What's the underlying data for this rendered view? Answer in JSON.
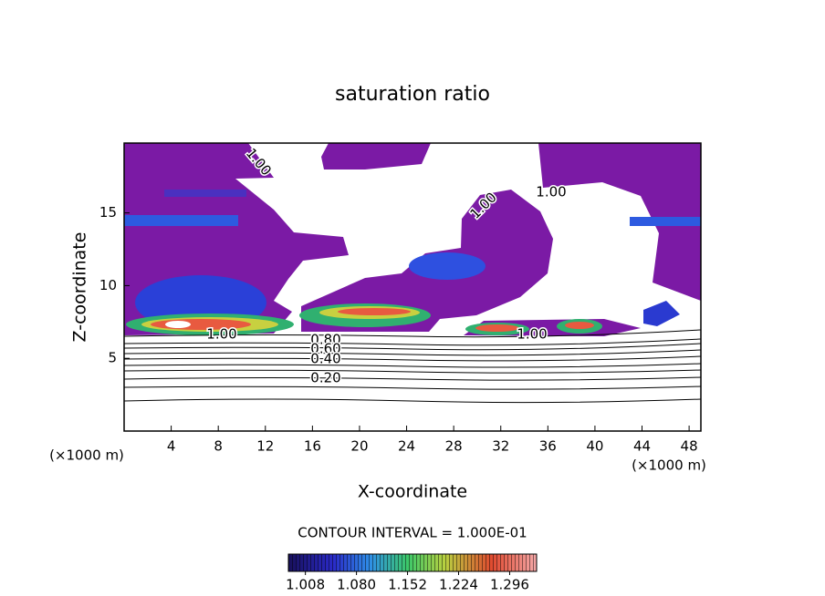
{
  "chart_data": {
    "type": "contour",
    "title": "saturation ratio",
    "x_label": "X-coordinate",
    "y_label": "Z-coordinate",
    "x_unit": "(×1000 m)",
    "y_unit": "(×1000 m)",
    "xlim": [
      0,
      49
    ],
    "ylim": [
      0,
      19.8
    ],
    "xticks": [
      4,
      8,
      12,
      16,
      20,
      24,
      28,
      32,
      36,
      40,
      44,
      48
    ],
    "yticks": [
      5,
      10,
      15
    ],
    "contour_labels": [
      {
        "value": 1,
        "label": "1.00"
      },
      {
        "value": 1,
        "label": "1.00"
      },
      {
        "value": 1,
        "label": "1.00"
      },
      {
        "value": 1,
        "label": "1.00"
      },
      {
        "value": 1,
        "label": "1.00"
      },
      {
        "value": 0.8,
        "label": "0.80"
      },
      {
        "value": 0.6,
        "label": "0.60"
      },
      {
        "value": 0.4,
        "label": "0.40"
      },
      {
        "value": 0.2,
        "label": "0.20"
      }
    ],
    "contour_interval": "CONTOUR INTERVAL = 1.000E-01",
    "colorbar": {
      "lim": [
        0.984,
        1.334
      ],
      "ticks": [
        1.008,
        {
          "value": 1.08,
          "label": "1.080"
        },
        1.152,
        1.224,
        1.296
      ]
    }
  }
}
